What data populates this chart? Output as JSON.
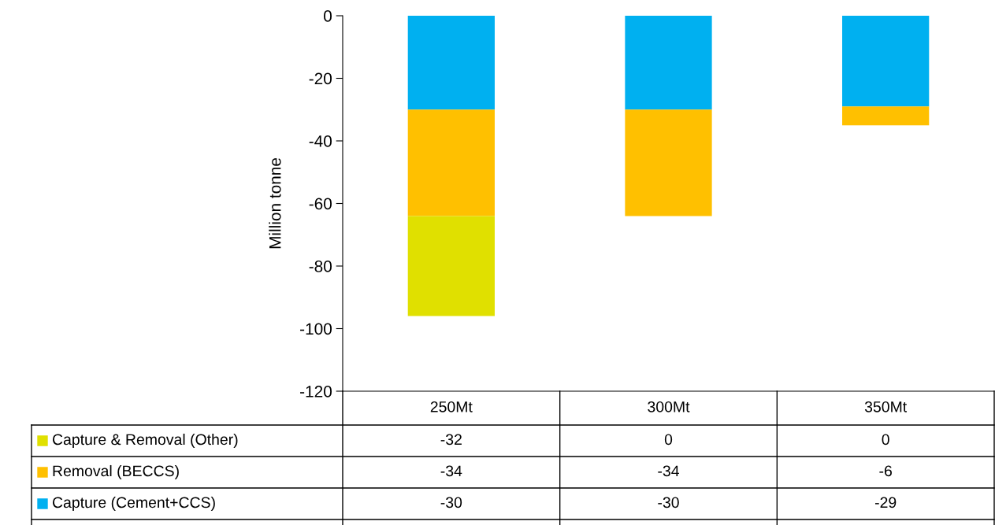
{
  "chart_data": {
    "type": "bar",
    "stacked": true,
    "ylabel": "Million tonne",
    "categories": [
      "250Mt",
      "300Mt",
      "350Mt"
    ],
    "series": [
      {
        "name": "Capture (Cement+CCS)",
        "color": "#00b0f0",
        "values": [
          -30,
          -30,
          -29
        ]
      },
      {
        "name": "Removal (BECCS)",
        "color": "#ffc000",
        "values": [
          -34,
          -34,
          -6
        ]
      },
      {
        "name": "Capture & Removal (Other)",
        "color": "#e0e000",
        "values": [
          -32,
          0,
          0
        ]
      }
    ],
    "ylim": [
      -120,
      0
    ],
    "yticks": [
      -120,
      -100,
      -80,
      -60,
      -40,
      -20,
      0
    ],
    "data_labels": true,
    "grid": false,
    "legend": "bottom"
  }
}
